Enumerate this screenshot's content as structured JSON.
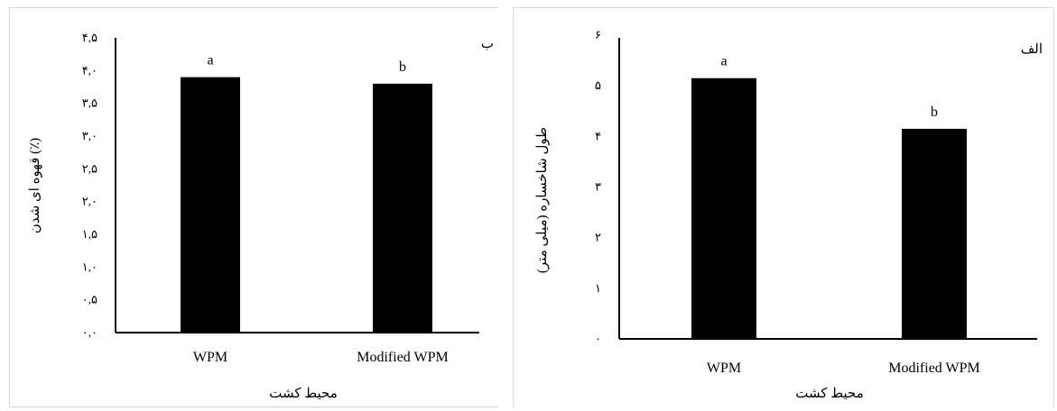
{
  "chart_data": [
    {
      "id": "browning",
      "type": "bar",
      "panel_label": "ب",
      "categories": [
        "WPM",
        "Modified WPM"
      ],
      "values": [
        3.9,
        3.8
      ],
      "significance": [
        "a",
        "b"
      ],
      "xlabel": "محیط کشت",
      "ylabel": "قهوه ای شدن (٪)",
      "ylim": [
        0,
        4.5
      ],
      "yticks": [
        0,
        0.5,
        1,
        1.5,
        2,
        2.5,
        3,
        3.5,
        4,
        4.5
      ],
      "ytick_labels": [
        "۰,۰",
        "۰,۵",
        "۱,۰",
        "۱,۵",
        "۲,۰",
        "۲,۵",
        "۳,۰",
        "۳,۵",
        "۴,۰",
        "۴,۵"
      ],
      "bar_color": "#000000",
      "grid": false,
      "legend": "none"
    },
    {
      "id": "shoot-length",
      "type": "bar",
      "panel_label": "الف",
      "categories": [
        "WPM",
        "Modified WPM"
      ],
      "values": [
        5.15,
        4.15
      ],
      "significance": [
        "a",
        "b"
      ],
      "xlabel": "محیط کشت",
      "ylabel": "طول شاخساره (میلی متر)",
      "ylim": [
        0,
        6
      ],
      "yticks": [
        0,
        1,
        2,
        3,
        4,
        5,
        6
      ],
      "ytick_labels": [
        "۰",
        "۱",
        "۲",
        "۳",
        "۴",
        "۵",
        "۶"
      ],
      "bar_color": "#000000",
      "grid": false,
      "legend": "none"
    }
  ]
}
